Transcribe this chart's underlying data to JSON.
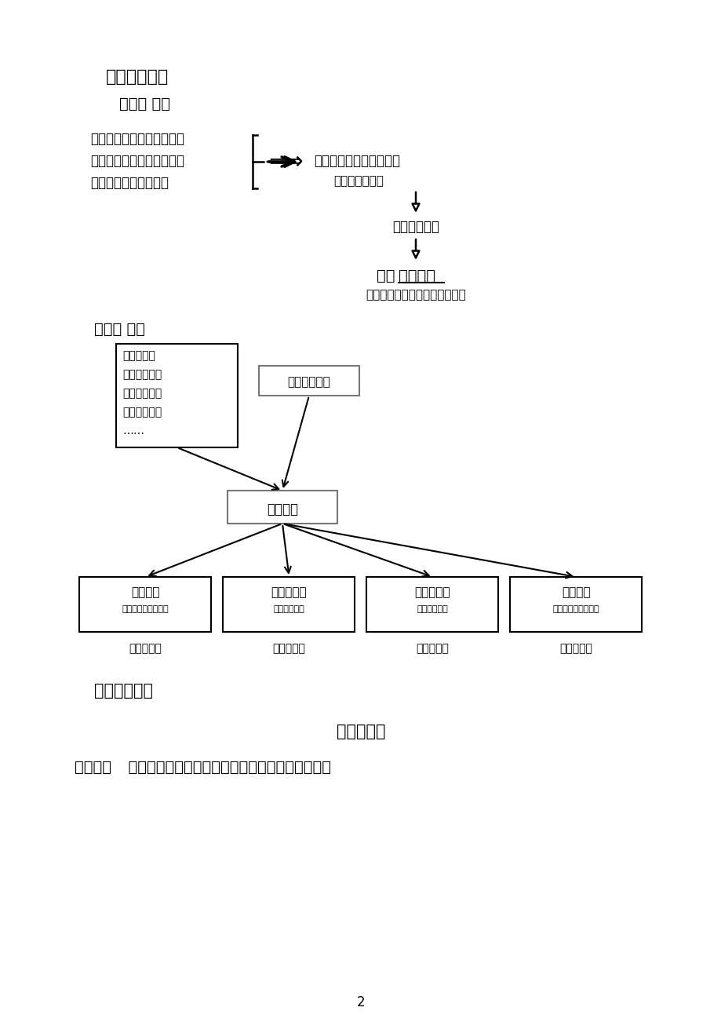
{
  "bg_color": "#ffffff",
  "title1": "四、活动模型",
  "title2": "（一） 流程",
  "flow_lines": [
    "深入剖析教育大的发展方向",
    "洞悉学校教师个人发展需求",
    "深入剖解学校核心课题"
  ],
  "flow_right_label": "学校教科研整体发展目标",
  "flow_right_sub": "（待解决问题）",
  "flow_middle1": "核心研究主题",
  "flow_bottom_main": "展开",
  "flow_bottom_bold": "校本研修",
  "flow_bottom_sub": "（以问题为驱动，课例为载体）",
  "title3": "（二） 架构",
  "box1_lines": [
    "现实背景：",
    "教育发展方向",
    "学校发展方向",
    "教师发展需求",
    "……"
  ],
  "box2_label": "学校课题剖析",
  "box3_label": "主题统领",
  "bottom_boxes": [
    {
      "main": "年度研修",
      "sub1": "（暑期堂素蕨培训活",
      "sub2": "（引领式）"
    },
    {
      "main": "学科组教研",
      "sub1": "（大组教研活",
      "sub2": "（深入式）"
    },
    {
      "main": "教研组教研",
      "sub1": "（小组教研活",
      "sub2": "（内化式）"
    },
    {
      "main": "个人教研",
      "sub1": "（以课堂为主阵地）",
      "sub2": "（风格式）"
    }
  ],
  "section5_title": "五、活动特征",
  "section5_sub": "聚焦真研究",
  "section5_body_bold": "年度研修",
  "section5_body_rest": "  重引领。聚焦年度核心研究主题，聘请省、市教科",
  "page_num": "2"
}
